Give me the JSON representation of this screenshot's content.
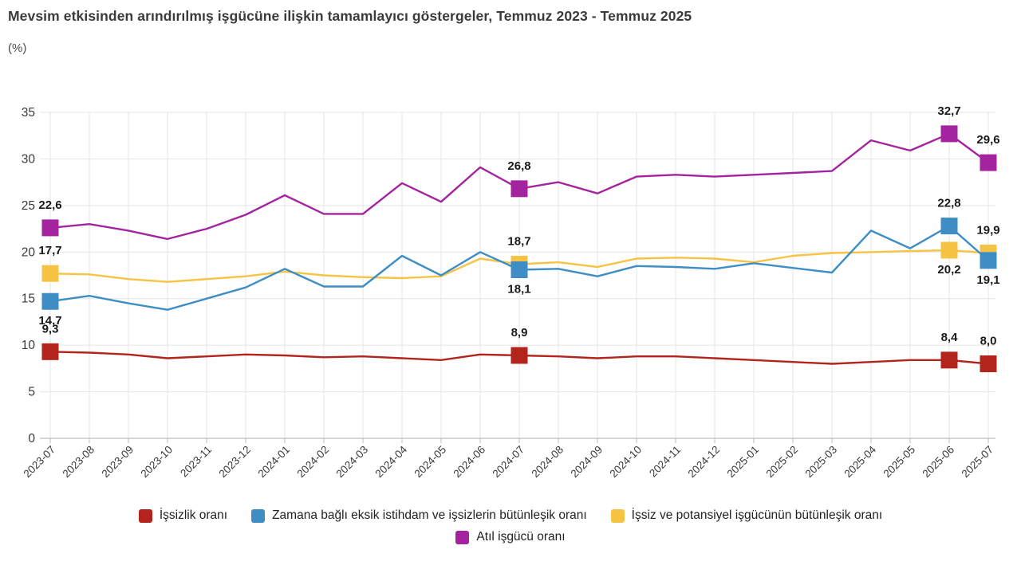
{
  "page": {
    "title": "Mevsim etkisinden arındırılmış işgücüne ilişkin tamamlayıcı göstergeler, Temmuz 2023 - Temmuz 2025",
    "unit_label": "(%)"
  },
  "chart_data": {
    "type": "line",
    "title": "Mevsim etkisinden arındırılmış işgücüne ilişkin tamamlayıcı göstergeler, Temmuz 2023 - Temmuz 2025",
    "ylabel": "(%)",
    "ylim": [
      0,
      35
    ],
    "y_ticks": [
      0,
      5,
      10,
      15,
      20,
      25,
      30,
      35
    ],
    "grid": true,
    "legend_position": "bottom",
    "marker_shape": "square",
    "categories": [
      "2023-07",
      "2023-08",
      "2023-09",
      "2023-10",
      "2023-11",
      "2023-12",
      "2024-01",
      "2024-02",
      "2024-03",
      "2024-04",
      "2024-05",
      "2024-06",
      "2024-07",
      "2024-08",
      "2024-09",
      "2024-10",
      "2024-11",
      "2024-12",
      "2025-01",
      "2025-02",
      "2025-03",
      "2025-04",
      "2025-05",
      "2025-06",
      "2025-07"
    ],
    "series": [
      {
        "name": "İşsizlik oranı",
        "color": "#b2241c",
        "values": [
          9.3,
          9.2,
          9.0,
          8.6,
          8.8,
          9.0,
          8.9,
          8.7,
          8.8,
          8.6,
          8.4,
          9.0,
          8.9,
          8.8,
          8.6,
          8.8,
          8.8,
          8.6,
          8.4,
          8.2,
          8.0,
          8.2,
          8.4,
          8.4,
          8.0
        ]
      },
      {
        "name": "Zamana bağlı eksik istihdam ve işsizlerin bütünleşik oranı",
        "color": "#3e8dc5",
        "values": [
          14.7,
          15.3,
          14.5,
          13.8,
          15.0,
          16.2,
          18.2,
          16.3,
          16.3,
          19.6,
          17.5,
          20.0,
          18.1,
          18.2,
          17.4,
          18.5,
          18.4,
          18.2,
          18.8,
          18.3,
          17.8,
          22.3,
          20.4,
          22.8,
          19.1
        ]
      },
      {
        "name": "İşsiz ve potansiyel işgücünün bütünleşik oranı",
        "color": "#f7c344",
        "values": [
          17.7,
          17.6,
          17.1,
          16.8,
          17.1,
          17.4,
          17.9,
          17.5,
          17.3,
          17.2,
          17.4,
          19.3,
          18.7,
          18.9,
          18.4,
          19.3,
          19.4,
          19.3,
          18.9,
          19.6,
          19.9,
          20.0,
          20.1,
          20.2,
          19.9
        ]
      },
      {
        "name": "Atıl işgücü oranı",
        "color": "#a424a0",
        "values": [
          22.6,
          23.0,
          22.3,
          21.4,
          22.5,
          24.0,
          26.1,
          24.1,
          24.1,
          27.4,
          25.4,
          29.1,
          26.8,
          27.5,
          26.3,
          28.1,
          28.3,
          28.1,
          28.3,
          28.5,
          28.7,
          32.0,
          30.9,
          32.7,
          29.6
        ]
      }
    ],
    "labeled_points": [
      {
        "s": 0,
        "i": 0,
        "text": "9,3",
        "pos": "above"
      },
      {
        "s": 0,
        "i": 12,
        "text": "8,9",
        "pos": "above"
      },
      {
        "s": 0,
        "i": 23,
        "text": "8,4",
        "pos": "above"
      },
      {
        "s": 0,
        "i": 24,
        "text": "8,0",
        "pos": "above"
      },
      {
        "s": 1,
        "i": 0,
        "text": "14,7",
        "pos": "below"
      },
      {
        "s": 1,
        "i": 12,
        "text": "18,1",
        "pos": "below"
      },
      {
        "s": 1,
        "i": 23,
        "text": "22,8",
        "pos": "above"
      },
      {
        "s": 1,
        "i": 24,
        "text": "19,1",
        "pos": "below"
      },
      {
        "s": 2,
        "i": 0,
        "text": "17,7",
        "pos": "above"
      },
      {
        "s": 2,
        "i": 12,
        "text": "18,7",
        "pos": "above"
      },
      {
        "s": 2,
        "i": 23,
        "text": "20,2",
        "pos": "below"
      },
      {
        "s": 2,
        "i": 24,
        "text": "19,9",
        "pos": "above"
      },
      {
        "s": 3,
        "i": 0,
        "text": "22,6",
        "pos": "above"
      },
      {
        "s": 3,
        "i": 12,
        "text": "26,8",
        "pos": "above"
      },
      {
        "s": 3,
        "i": 23,
        "text": "32,7",
        "pos": "above"
      },
      {
        "s": 3,
        "i": 24,
        "text": "29,6",
        "pos": "above"
      }
    ]
  }
}
